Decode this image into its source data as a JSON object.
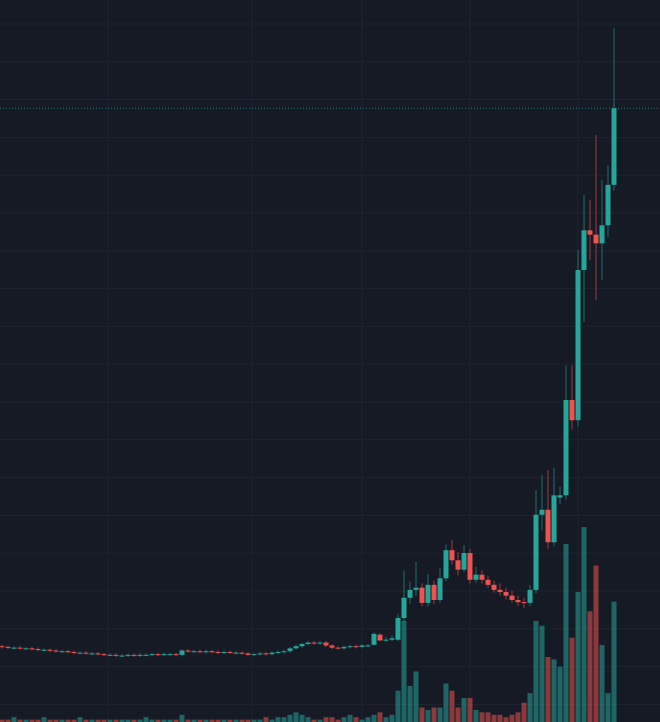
{
  "chart_data": {
    "type": "candlestick",
    "open": [
      10.5,
      10.4,
      10.3,
      10.3,
      10.2,
      10.2,
      10.1,
      10.0,
      10.0,
      9.9,
      9.8,
      9.8,
      9.7,
      9.6,
      9.6,
      9.5,
      9.5,
      9.4,
      9.3,
      9.3,
      9.2,
      9.2,
      9.3,
      9.2,
      9.3,
      9.3,
      9.4,
      9.3,
      9.4,
      9.4,
      9.3,
      9.9,
      9.8,
      9.8,
      9.7,
      9.8,
      9.7,
      9.6,
      9.7,
      9.6,
      9.6,
      9.5,
      9.3,
      9.4,
      9.5,
      9.4,
      9.6,
      9.7,
      9.8,
      10.2,
      10.5,
      10.8,
      11.0,
      10.9,
      11.0,
      10.6,
      10.3,
      10.2,
      10.4,
      10.5,
      10.4,
      10.6,
      10.7,
      12.1,
      11.3,
      11.4,
      11.4,
      14.4,
      17.2,
      18.3,
      18.6,
      16.5,
      19.0,
      16.9,
      19.9,
      23.8,
      22.4,
      21.1,
      23.4,
      19.7,
      20.4,
      19.7,
      19.0,
      18.3,
      18.0,
      17.5,
      16.9,
      16.6,
      16.5,
      18.3,
      28.7,
      29.4,
      24.9,
      31.1,
      31.4,
      44.6,
      41.8,
      62.6,
      68.1,
      67.5,
      66.3,
      68.8,
      74.4
    ],
    "high": [
      10.7,
      10.6,
      10.5,
      10.5,
      10.4,
      10.4,
      10.3,
      10.2,
      10.2,
      10.1,
      10.0,
      10.0,
      9.9,
      9.8,
      9.8,
      9.7,
      9.7,
      9.6,
      9.5,
      9.5,
      9.4,
      9.5,
      9.5,
      9.5,
      9.5,
      9.6,
      9.6,
      9.6,
      9.6,
      9.6,
      10.1,
      10.1,
      10.0,
      10.0,
      10.0,
      10.0,
      9.9,
      9.9,
      9.9,
      9.8,
      9.8,
      9.7,
      9.6,
      9.7,
      9.7,
      9.8,
      9.9,
      10.0,
      10.4,
      10.7,
      11.0,
      11.2,
      11.2,
      11.2,
      11.2,
      10.8,
      10.5,
      10.6,
      10.7,
      10.7,
      10.8,
      10.8,
      12.4,
      12.3,
      11.8,
      12.0,
      15.0,
      21.0,
      19.5,
      22.2,
      19.2,
      20.5,
      19.6,
      21.3,
      24.6,
      25.2,
      23.5,
      24.5,
      24.0,
      21.5,
      21.0,
      20.3,
      19.6,
      19.2,
      18.6,
      18.2,
      17.5,
      17.2,
      19.0,
      32.1,
      34.2,
      34.9,
      35.2,
      32.6,
      49.4,
      49.4,
      65.4,
      73.0,
      72.3,
      81.3,
      75.1,
      77.1,
      96.1
    ],
    "low": [
      10.2,
      10.1,
      10.1,
      10.0,
      10.0,
      9.9,
      9.8,
      9.8,
      9.7,
      9.6,
      9.6,
      9.5,
      9.4,
      9.4,
      9.3,
      9.3,
      9.2,
      9.1,
      9.1,
      9.0,
      9.0,
      9.0,
      9.0,
      9.0,
      9.1,
      9.1,
      9.1,
      9.1,
      9.2,
      9.1,
      9.1,
      9.6,
      9.6,
      9.5,
      9.5,
      9.5,
      9.4,
      9.4,
      9.4,
      9.4,
      9.3,
      9.1,
      9.1,
      9.2,
      9.2,
      9.2,
      9.4,
      9.5,
      9.6,
      10.0,
      10.3,
      10.6,
      10.7,
      10.7,
      10.4,
      10.1,
      10.0,
      10.0,
      10.2,
      10.2,
      10.2,
      10.4,
      10.6,
      11.2,
      11.1,
      11.2,
      11.2,
      13.9,
      16.4,
      17.5,
      16.0,
      16.0,
      16.3,
      16.5,
      19.5,
      21.8,
      20.3,
      20.8,
      19.2,
      19.3,
      19.2,
      18.6,
      17.9,
      17.5,
      17.0,
      16.5,
      16.1,
      15.8,
      16.0,
      17.8,
      26.5,
      24.0,
      24.3,
      30.2,
      30.8,
      40.5,
      40.9,
      55.4,
      64.0,
      58.4,
      61.2,
      67.2,
      73.6
    ],
    "close": [
      10.4,
      10.3,
      10.3,
      10.2,
      10.2,
      10.1,
      10.0,
      10.0,
      9.9,
      9.8,
      9.8,
      9.7,
      9.6,
      9.6,
      9.5,
      9.5,
      9.4,
      9.3,
      9.3,
      9.2,
      9.2,
      9.3,
      9.2,
      9.3,
      9.3,
      9.4,
      9.3,
      9.4,
      9.4,
      9.3,
      9.9,
      9.8,
      9.8,
      9.7,
      9.8,
      9.7,
      9.6,
      9.7,
      9.6,
      9.6,
      9.5,
      9.3,
      9.4,
      9.5,
      9.4,
      9.6,
      9.7,
      9.8,
      10.2,
      10.5,
      10.8,
      11.0,
      10.9,
      11.0,
      10.6,
      10.3,
      10.2,
      10.4,
      10.5,
      10.4,
      10.6,
      10.6,
      12.2,
      11.3,
      11.4,
      11.6,
      14.4,
      17.2,
      18.3,
      18.6,
      16.5,
      19.0,
      16.9,
      19.9,
      23.8,
      22.4,
      21.1,
      23.4,
      19.7,
      20.4,
      19.7,
      19.0,
      18.3,
      18.0,
      17.5,
      16.9,
      16.6,
      16.5,
      18.3,
      28.7,
      29.4,
      24.9,
      31.4,
      31.4,
      44.6,
      41.8,
      62.6,
      68.1,
      67.5,
      66.3,
      68.8,
      74.4,
      85.0
    ],
    "volume": [
      1,
      1,
      2,
      1,
      1,
      1,
      1,
      2,
      1,
      1,
      1,
      1,
      1,
      2,
      1,
      1,
      1,
      1,
      1,
      1,
      1,
      1,
      1,
      1,
      2,
      1,
      1,
      1,
      1,
      1,
      3,
      1,
      1,
      1,
      1,
      1,
      1,
      1,
      1,
      1,
      1,
      1,
      1,
      1,
      2,
      1,
      2,
      2,
      3,
      4,
      3,
      2,
      1,
      1,
      2,
      2,
      1,
      2,
      3,
      2,
      1,
      2,
      3,
      4,
      2,
      3,
      13,
      42,
      15,
      21,
      6,
      5,
      6,
      6,
      16,
      13,
      6,
      10,
      10,
      5,
      4,
      4,
      3,
      3,
      2,
      3,
      4,
      8,
      12,
      42,
      40,
      27,
      26,
      23,
      74,
      35,
      54,
      81,
      46,
      65,
      32,
      12,
      50
    ],
    "ylim": [
      0,
      100
    ],
    "volume_ylim": [
      0,
      300
    ],
    "up_color": "#26a69a",
    "down_color": "#ef5350"
  }
}
